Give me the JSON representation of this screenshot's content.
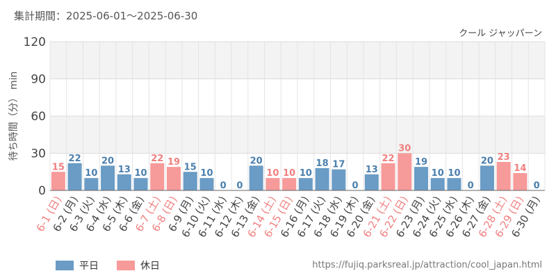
{
  "period_text": "集計期間：2025-06-01～2025-06-30",
  "source_url": "https://fujiq.parksreal.jp/attraction/cool_japan.html",
  "colors": {
    "weekday": "#6a9cc5",
    "holiday": "#f79a9a",
    "weekday_text": "#4a7fae",
    "holiday_text": "#f07f7f"
  },
  "chart_data": {
    "type": "bar",
    "title": "クール ジャッパーン",
    "ylabel": "待ち時間（分） min",
    "ylim": [
      0,
      120
    ],
    "yticks": [
      0,
      30,
      60,
      90,
      120
    ],
    "grid": true,
    "legend": {
      "position": "bottom-left",
      "items": [
        {
          "label": "平日",
          "key": "weekday"
        },
        {
          "label": "休日",
          "key": "holiday"
        }
      ]
    },
    "categories": [
      "6-1 (日)",
      "6-2 (月)",
      "6-3 (火)",
      "6-4 (水)",
      "6-5 (木)",
      "6-6 (金)",
      "6-7 (土)",
      "6-8 (日)",
      "6-9 (月)",
      "6-10 (火)",
      "6-11 (水)",
      "6-12 (木)",
      "6-13 (金)",
      "6-14 (土)",
      "6-15 (日)",
      "6-16 (月)",
      "6-17 (火)",
      "6-18 (水)",
      "6-19 (木)",
      "6-20 (金)",
      "6-21 (土)",
      "6-22 (日)",
      "6-23 (月)",
      "6-24 (火)",
      "6-25 (水)",
      "6-26 (木)",
      "6-27 (金)",
      "6-28 (土)",
      "6-29 (日)",
      "6-30 (月)"
    ],
    "values": [
      15,
      22,
      10,
      20,
      13,
      10,
      22,
      19,
      15,
      10,
      0,
      0,
      20,
      10,
      10,
      10,
      18,
      17,
      0,
      13,
      22,
      30,
      19,
      10,
      10,
      0,
      20,
      23,
      14,
      0
    ],
    "day_type": [
      "holiday",
      "weekday",
      "weekday",
      "weekday",
      "weekday",
      "weekday",
      "holiday",
      "holiday",
      "weekday",
      "weekday",
      "weekday",
      "weekday",
      "weekday",
      "holiday",
      "holiday",
      "weekday",
      "weekday",
      "weekday",
      "weekday",
      "weekday",
      "holiday",
      "holiday",
      "weekday",
      "weekday",
      "weekday",
      "weekday",
      "weekday",
      "holiday",
      "holiday",
      "weekday"
    ]
  }
}
